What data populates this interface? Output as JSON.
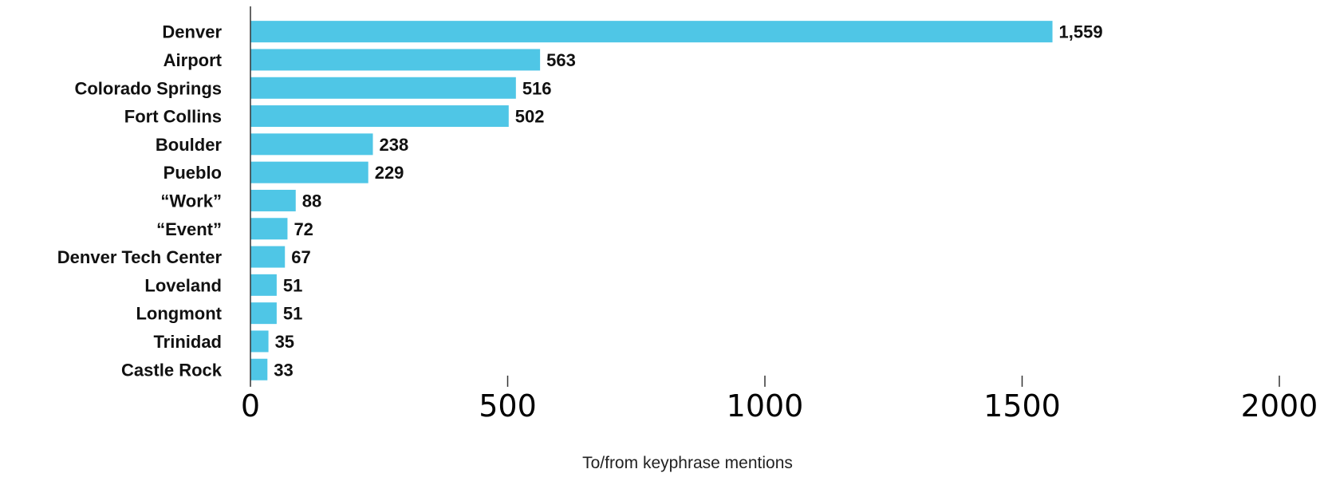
{
  "chart_data": {
    "type": "bar",
    "orientation": "horizontal",
    "categories": [
      "Denver",
      "Airport",
      "Colorado Springs",
      "Fort Collins",
      "Boulder",
      "Pueblo",
      "“Work”",
      "“Event”",
      "Denver Tech Center",
      "Loveland",
      "Longmont",
      "Trinidad",
      "Castle Rock"
    ],
    "values": [
      1559,
      563,
      516,
      502,
      238,
      229,
      88,
      72,
      67,
      51,
      51,
      35,
      33
    ],
    "value_labels": [
      "1,559",
      "563",
      "516",
      "502",
      "238",
      "229",
      "88",
      "72",
      "67",
      "51",
      "51",
      "35",
      "33"
    ],
    "xlabel": "To/from keyphrase mentions",
    "ylabel": "",
    "xlim": [
      0,
      2000
    ],
    "xticks": [
      0,
      500,
      1000,
      1500,
      2000
    ],
    "xtick_labels": [
      "0",
      "500",
      "1000",
      "1500",
      "2000"
    ],
    "grid": false,
    "bar_color": "#4FC6E6"
  }
}
